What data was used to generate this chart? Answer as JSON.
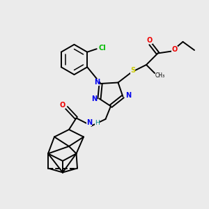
{
  "background_color": "#ebebeb",
  "figsize": [
    3.0,
    3.0
  ],
  "dpi": 100,
  "colors": {
    "C": "#000000",
    "N": "#0000ee",
    "O": "#ee0000",
    "S": "#cccc00",
    "Cl": "#00bb00",
    "H": "#008888"
  }
}
